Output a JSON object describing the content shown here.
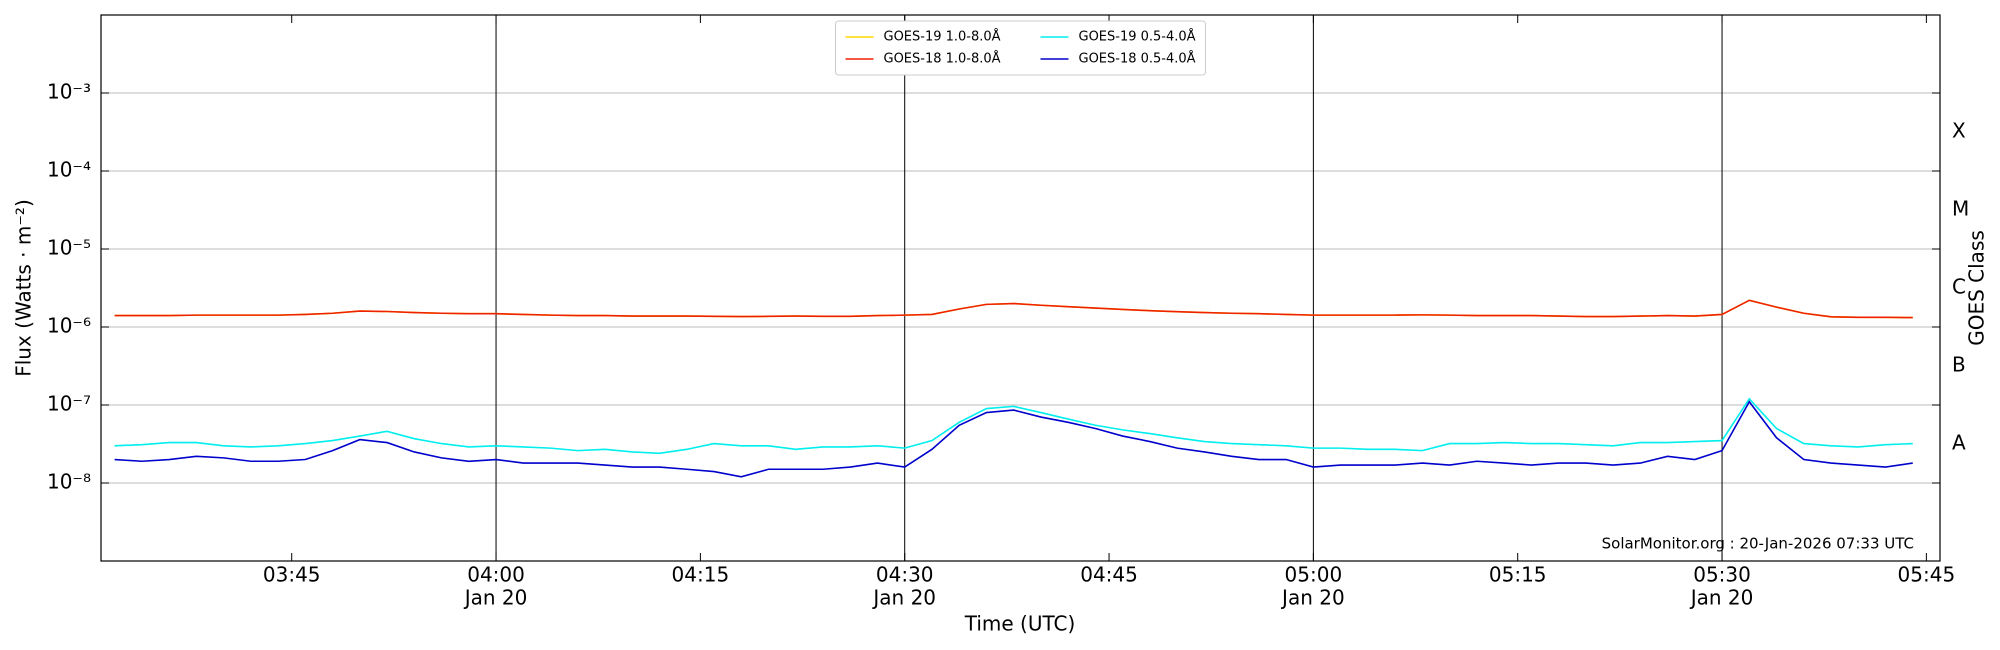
{
  "chart_data": {
    "type": "line",
    "xlabel": "Time (UTC)",
    "ylabel": "Flux (Watts · m⁻²)",
    "y2label": "GOES Class",
    "annotation": "SolarMonitor.org : 20-Jan-2026 07:33 UTC",
    "yscale": "log",
    "ylim": [
      1e-09,
      0.01
    ],
    "yticks": [
      {
        "value": 1e-08,
        "label": "10⁻⁸"
      },
      {
        "value": 1e-07,
        "label": "10⁻⁷"
      },
      {
        "value": 1e-06,
        "label": "10⁻⁶"
      },
      {
        "value": 1e-05,
        "label": "10⁻⁵"
      },
      {
        "value": 0.0001,
        "label": "10⁻⁴"
      },
      {
        "value": 0.001,
        "label": "10⁻³"
      }
    ],
    "y2lim": [
      1e-09,
      0.01
    ],
    "y2ticks": [
      {
        "value": 3.16e-08,
        "label": "A"
      },
      {
        "value": 3.16e-07,
        "label": "B"
      },
      {
        "value": 3.16e-06,
        "label": "C"
      },
      {
        "value": 3.16e-05,
        "label": "M"
      },
      {
        "value": 0.000316,
        "label": "X"
      }
    ],
    "grid": true,
    "legend": "top-center",
    "xlim": [
      "03:31",
      "05:46"
    ],
    "xticks": [
      "03:45",
      {
        "value": "04:00",
        "label": "04:00",
        "date": "Jan 20"
      },
      "04:15",
      {
        "value": "04:30",
        "label": "04:30",
        "date": "Jan 20"
      },
      "04:45",
      {
        "value": "05:00",
        "label": "05:00",
        "date": "Jan 20"
      },
      "05:15",
      {
        "value": "05:30",
        "label": "05:30",
        "date": "Jan 20"
      },
      "05:45"
    ],
    "x": [
      "03:32",
      "03:34",
      "03:36",
      "03:38",
      "03:40",
      "03:42",
      "03:44",
      "03:46",
      "03:48",
      "03:50",
      "03:52",
      "03:54",
      "03:56",
      "03:58",
      "04:00",
      "04:02",
      "04:04",
      "04:06",
      "04:08",
      "04:10",
      "04:12",
      "04:14",
      "04:16",
      "04:18",
      "04:20",
      "04:22",
      "04:24",
      "04:26",
      "04:28",
      "04:30",
      "04:32",
      "04:34",
      "04:36",
      "04:38",
      "04:40",
      "04:42",
      "04:44",
      "04:46",
      "04:48",
      "04:50",
      "04:52",
      "04:54",
      "04:56",
      "04:58",
      "05:00",
      "05:02",
      "05:04",
      "05:06",
      "05:08",
      "05:10",
      "05:12",
      "05:14",
      "05:16",
      "05:18",
      "05:20",
      "05:22",
      "05:24",
      "05:26",
      "05:28",
      "05:30",
      "05:32",
      "05:34",
      "05:36",
      "05:38",
      "05:40",
      "05:42",
      "05:44"
    ],
    "series": [
      {
        "name": "GOES-19 1.0-8.0Å",
        "color": "#ffd700",
        "values": [
          1.4e-06,
          1.4e-06,
          1.4e-06,
          1.42e-06,
          1.42e-06,
          1.42e-06,
          1.42e-06,
          1.45e-06,
          1.5e-06,
          1.6e-06,
          1.58e-06,
          1.53e-06,
          1.5e-06,
          1.48e-06,
          1.48e-06,
          1.45e-06,
          1.42e-06,
          1.4e-06,
          1.4e-06,
          1.38e-06,
          1.38e-06,
          1.38e-06,
          1.37e-06,
          1.36e-06,
          1.37e-06,
          1.38e-06,
          1.37e-06,
          1.37e-06,
          1.4e-06,
          1.42e-06,
          1.45e-06,
          1.7e-06,
          1.95e-06,
          2e-06,
          1.9e-06,
          1.82e-06,
          1.75e-06,
          1.68e-06,
          1.62e-06,
          1.57e-06,
          1.53e-06,
          1.5e-06,
          1.48e-06,
          1.45e-06,
          1.42e-06,
          1.42e-06,
          1.42e-06,
          1.42e-06,
          1.43e-06,
          1.42e-06,
          1.4e-06,
          1.4e-06,
          1.4e-06,
          1.38e-06,
          1.36e-06,
          1.36e-06,
          1.38e-06,
          1.4e-06,
          1.38e-06,
          1.45e-06,
          2.2e-06,
          1.8e-06,
          1.5e-06,
          1.35e-06,
          1.33e-06,
          1.33e-06,
          1.32e-06
        ]
      },
      {
        "name": "GOES-18 1.0-8.0Å",
        "color": "#ee2200",
        "values": [
          1.4e-06,
          1.4e-06,
          1.4e-06,
          1.42e-06,
          1.42e-06,
          1.42e-06,
          1.42e-06,
          1.45e-06,
          1.5e-06,
          1.6e-06,
          1.58e-06,
          1.53e-06,
          1.5e-06,
          1.48e-06,
          1.48e-06,
          1.45e-06,
          1.42e-06,
          1.4e-06,
          1.4e-06,
          1.38e-06,
          1.38e-06,
          1.38e-06,
          1.37e-06,
          1.36e-06,
          1.37e-06,
          1.38e-06,
          1.37e-06,
          1.37e-06,
          1.4e-06,
          1.42e-06,
          1.45e-06,
          1.7e-06,
          1.95e-06,
          2e-06,
          1.9e-06,
          1.82e-06,
          1.75e-06,
          1.68e-06,
          1.62e-06,
          1.57e-06,
          1.53e-06,
          1.5e-06,
          1.48e-06,
          1.45e-06,
          1.42e-06,
          1.42e-06,
          1.42e-06,
          1.42e-06,
          1.43e-06,
          1.42e-06,
          1.4e-06,
          1.4e-06,
          1.4e-06,
          1.38e-06,
          1.36e-06,
          1.36e-06,
          1.38e-06,
          1.4e-06,
          1.38e-06,
          1.45e-06,
          2.2e-06,
          1.8e-06,
          1.5e-06,
          1.35e-06,
          1.33e-06,
          1.33e-06,
          1.32e-06
        ]
      },
      {
        "name": "GOES-19 0.5-4.0Å",
        "color": "#00eeee",
        "values": [
          3e-08,
          3.1e-08,
          3.3e-08,
          3.3e-08,
          3e-08,
          2.9e-08,
          3e-08,
          3.2e-08,
          3.5e-08,
          4e-08,
          4.6e-08,
          3.7e-08,
          3.2e-08,
          2.9e-08,
          3e-08,
          2.9e-08,
          2.8e-08,
          2.6e-08,
          2.7e-08,
          2.5e-08,
          2.4e-08,
          2.7e-08,
          3.2e-08,
          3e-08,
          3e-08,
          2.7e-08,
          2.9e-08,
          2.9e-08,
          3e-08,
          2.8e-08,
          3.5e-08,
          6e-08,
          9e-08,
          9.6e-08,
          8e-08,
          6.6e-08,
          5.5e-08,
          4.8e-08,
          4.3e-08,
          3.8e-08,
          3.4e-08,
          3.2e-08,
          3.1e-08,
          3e-08,
          2.8e-08,
          2.8e-08,
          2.7e-08,
          2.7e-08,
          2.6e-08,
          3.2e-08,
          3.2e-08,
          3.3e-08,
          3.2e-08,
          3.2e-08,
          3.1e-08,
          3e-08,
          3.3e-08,
          3.3e-08,
          3.4e-08,
          3.5e-08,
          1.2e-07,
          5e-08,
          3.2e-08,
          3e-08,
          2.9e-08,
          3.1e-08,
          3.2e-08
        ]
      },
      {
        "name": "GOES-18 0.5-4.0Å",
        "color": "#0000cc",
        "values": [
          2e-08,
          1.9e-08,
          2e-08,
          2.2e-08,
          2.1e-08,
          1.9e-08,
          1.9e-08,
          2e-08,
          2.6e-08,
          3.6e-08,
          3.3e-08,
          2.5e-08,
          2.1e-08,
          1.9e-08,
          2e-08,
          1.8e-08,
          1.8e-08,
          1.8e-08,
          1.7e-08,
          1.6e-08,
          1.6e-08,
          1.5e-08,
          1.4e-08,
          1.2e-08,
          1.5e-08,
          1.5e-08,
          1.5e-08,
          1.6e-08,
          1.8e-08,
          1.6e-08,
          2.7e-08,
          5.5e-08,
          8e-08,
          8.6e-08,
          7e-08,
          6e-08,
          5e-08,
          4e-08,
          3.4e-08,
          2.8e-08,
          2.5e-08,
          2.2e-08,
          2e-08,
          2e-08,
          1.6e-08,
          1.7e-08,
          1.7e-08,
          1.7e-08,
          1.8e-08,
          1.7e-08,
          1.9e-08,
          1.8e-08,
          1.7e-08,
          1.8e-08,
          1.8e-08,
          1.7e-08,
          1.8e-08,
          2.2e-08,
          2e-08,
          2.6e-08,
          1.1e-07,
          3.8e-08,
          2e-08,
          1.8e-08,
          1.7e-08,
          1.6e-08,
          1.8e-08
        ]
      }
    ]
  }
}
